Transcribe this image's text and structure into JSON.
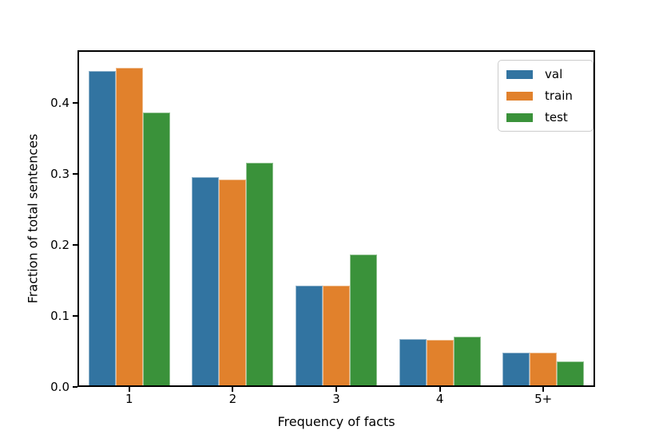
{
  "chart_data": {
    "type": "bar",
    "title": "",
    "xlabel": "Frequency of facts",
    "ylabel": "Fraction of total sentences",
    "categories": [
      "1",
      "2",
      "3",
      "4",
      "5+"
    ],
    "series": [
      {
        "name": "val",
        "color": "#3274a1",
        "values": [
          0.445,
          0.295,
          0.143,
          0.067,
          0.048
        ]
      },
      {
        "name": "train",
        "color": "#e1812c",
        "values": [
          0.449,
          0.292,
          0.143,
          0.066,
          0.048
        ]
      },
      {
        "name": "test",
        "color": "#3a923a",
        "values": [
          0.387,
          0.316,
          0.187,
          0.071,
          0.036
        ]
      }
    ],
    "ylim": [
      0,
      0.474
    ],
    "yticks": [
      0.0,
      0.1,
      0.2,
      0.3,
      0.4
    ],
    "ytick_labels": [
      "0.0",
      "0.1",
      "0.2",
      "0.3",
      "0.4"
    ],
    "grid": false,
    "legend_position": "upper right",
    "colors": {
      "spine": "#000000",
      "background": "#ffffff",
      "legend_border": "#cccccc"
    }
  }
}
